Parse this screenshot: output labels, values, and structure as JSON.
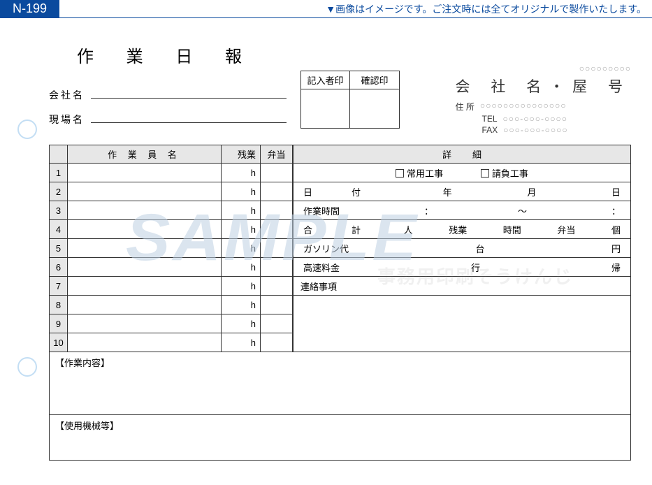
{
  "code": "N-199",
  "top_note": "▼画像はイメージです。ご注文時には全てオリジナルで製作いたします。",
  "title": "作 業 日 報",
  "fields": {
    "company": "会社名",
    "site": "現場名"
  },
  "stamps": {
    "writer": "記入者印",
    "confirm": "確認印"
  },
  "company_block": {
    "placeholder_top": "○○○○○○○○○",
    "name": "会 社 名・屋 号",
    "addr_label": "住 所",
    "addr_val": "○○○○○○○○○○○○○○○",
    "tel_label": "TEL",
    "tel_val": "○○○-○○○-○○○○",
    "fax_label": "FAX",
    "fax_val": "○○○-○○○-○○○○"
  },
  "worker_table": {
    "head_name": "作 業 員 名",
    "head_ot": "残業",
    "head_bento": "弁当",
    "unit": "h",
    "rows": [
      "1",
      "2",
      "3",
      "4",
      "5",
      "6",
      "7",
      "8",
      "9",
      "10"
    ]
  },
  "detail": {
    "head": "詳細",
    "check1": "常用工事",
    "check2": "請負工事",
    "date_row": {
      "l": "日　　付",
      "y": "年",
      "m": "月",
      "d": "日"
    },
    "time_row": {
      "l": "作業時間",
      "c1": "：",
      "s": "～",
      "c2": "："
    },
    "total_row": {
      "l": "合　　計",
      "p": "人",
      "o": "残業",
      "h": "時間",
      "b": "弁当",
      "u": "個"
    },
    "gas_row": {
      "l": "ガソリン代",
      "m": "台",
      "e": "円"
    },
    "toll_row": {
      "l": "高速料金",
      "g": "行",
      "r": "帰"
    },
    "memo": "連絡事項"
  },
  "sections": {
    "work": "【作業内容】",
    "machine": "【使用機械等】"
  },
  "watermark": "SAMPLE",
  "watermark_jp": "事務用印刷そうけんじ"
}
